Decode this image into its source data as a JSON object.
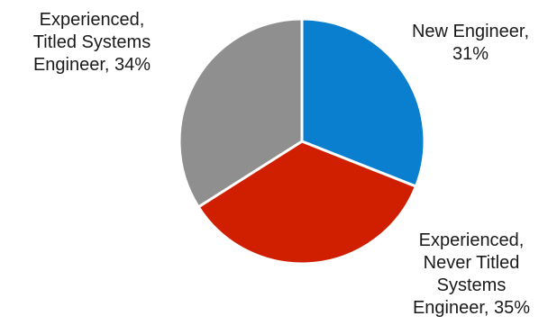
{
  "chart_data": {
    "type": "pie",
    "title": "",
    "start_angle_deg": 0,
    "direction": "clockwise",
    "slices": [
      {
        "label_lines": [
          "New Engineer,",
          "31%"
        ],
        "category": "New Engineer",
        "value": 31,
        "color": "#0a7fd0"
      },
      {
        "label_lines": [
          "Experienced,",
          "Never Titled",
          "Systems",
          "Engineer, 35%"
        ],
        "category": "Experienced, Never Titled Systems Engineer",
        "value": 35,
        "color": "#d01f00"
      },
      {
        "label_lines": [
          "Experienced,",
          "Titled Systems",
          "Engineer, 34%"
        ],
        "category": "Experienced, Titled Systems Engineer",
        "value": 34,
        "color": "#8f8f8f"
      }
    ],
    "legend": "none",
    "border_color": "#ffffff"
  }
}
